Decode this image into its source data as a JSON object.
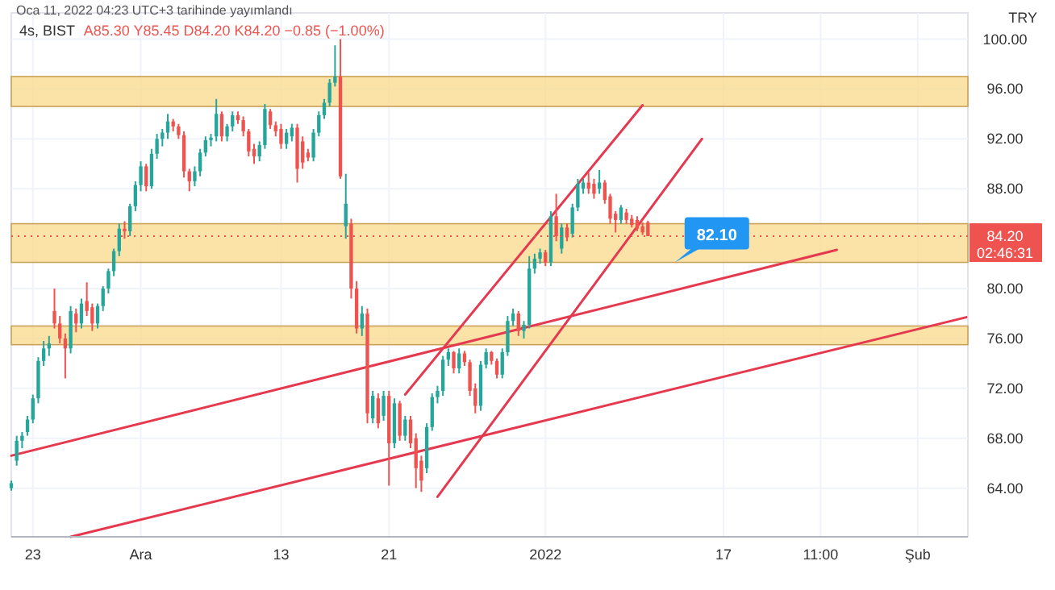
{
  "chart_data": {
    "type": "candlestick",
    "title": "4s, BIST",
    "subtitle": "A85.30 Y85.45 D84.20 K84.20 −0.85 (−1.00%)",
    "annotations": [
      "Oca 11, 2022 04:23 UTC+3 tarihinde yayımlandı",
      "TRY",
      "02:46:31",
      {
        "text": "82.10",
        "y": 82.1
      }
    ],
    "categories": [
      null,
      null,
      null,
      null,
      "23",
      null,
      null,
      null,
      null,
      null,
      null,
      null,
      null,
      null,
      null,
      null,
      null,
      null,
      null,
      null,
      null,
      null,
      null,
      null,
      "Ara",
      null,
      null,
      null,
      null,
      null,
      null,
      null,
      null,
      null,
      null,
      null,
      null,
      null,
      null,
      null,
      null,
      null,
      null,
      null,
      null,
      null,
      null,
      null,
      null,
      null,
      "13",
      null,
      null,
      null,
      null,
      null,
      null,
      null,
      null,
      null,
      null,
      null,
      null,
      null,
      null,
      null,
      null,
      null,
      null,
      null,
      "21",
      null,
      null,
      null,
      null,
      null,
      null,
      null,
      null,
      null,
      null,
      null,
      null,
      null,
      null,
      null,
      null,
      null,
      null,
      null,
      null,
      null,
      null,
      null,
      null,
      null,
      null,
      null,
      null,
      "2022",
      null,
      null,
      null,
      null,
      null,
      null,
      null,
      null,
      null,
      null,
      null,
      null,
      null,
      null,
      null,
      null,
      null,
      null,
      null,
      null,
      null,
      null,
      null,
      null,
      null,
      null,
      null,
      null,
      null,
      null,
      null,
      null,
      "17",
      null,
      null,
      null,
      null,
      null,
      null,
      null,
      null,
      null,
      null,
      null,
      null,
      null,
      null,
      null,
      null,
      null,
      "11:00",
      null,
      null,
      null,
      null,
      null,
      null,
      null,
      null,
      null,
      null,
      null,
      null,
      null,
      null,
      null,
      null,
      null,
      "Şub",
      null,
      null,
      null,
      null,
      null,
      null,
      null,
      null,
      null
    ],
    "ohlc": [
      [
        64.0,
        64.6,
        63.8,
        64.4
      ],
      [
        66.2,
        68.2,
        65.8,
        67.8
      ],
      [
        67.8,
        68.5,
        67.2,
        68.2
      ],
      [
        68.5,
        69.8,
        68.2,
        69.5
      ],
      [
        69.5,
        71.5,
        69.2,
        71.2
      ],
      [
        71.2,
        74.5,
        70.8,
        74.2
      ],
      [
        74.2,
        75.8,
        73.8,
        75.2
      ],
      [
        75.2,
        76.2,
        74.6,
        75.6
      ],
      [
        78.2,
        80.0,
        76.8,
        77.2
      ],
      [
        77.2,
        77.8,
        75.6,
        76.0
      ],
      [
        76.0,
        76.4,
        72.8,
        75.2
      ],
      [
        75.2,
        78.6,
        74.8,
        78.2
      ],
      [
        78.0,
        78.4,
        76.5,
        77.2
      ],
      [
        77.2,
        79.2,
        76.8,
        78.8
      ],
      [
        79.0,
        80.5,
        77.8,
        78.2
      ],
      [
        78.5,
        78.8,
        76.6,
        77.2
      ],
      [
        77.2,
        78.8,
        76.8,
        78.6
      ],
      [
        78.6,
        80.2,
        78.2,
        80.0
      ],
      [
        80.0,
        81.6,
        79.6,
        81.4
      ],
      [
        81.4,
        83.2,
        81.0,
        83.0
      ],
      [
        83.0,
        85.2,
        82.6,
        84.8
      ],
      [
        84.8,
        85.4,
        84.0,
        84.6
      ],
      [
        84.6,
        86.8,
        84.2,
        86.6
      ],
      [
        86.6,
        88.6,
        86.2,
        88.3
      ],
      [
        88.3,
        90.2,
        87.8,
        89.8
      ],
      [
        89.8,
        90.0,
        87.8,
        88.2
      ],
      [
        88.2,
        91.2,
        88.0,
        90.8
      ],
      [
        90.8,
        92.4,
        90.4,
        92.0
      ],
      [
        92.0,
        92.8,
        91.4,
        92.5
      ],
      [
        92.5,
        94.0,
        92.0,
        93.4
      ],
      [
        93.4,
        93.6,
        92.6,
        93.0
      ],
      [
        93.0,
        93.2,
        92.0,
        92.3
      ],
      [
        92.3,
        92.6,
        88.9,
        89.4
      ],
      [
        89.4,
        89.6,
        87.8,
        88.6
      ],
      [
        88.6,
        89.8,
        88.2,
        89.4
      ],
      [
        89.4,
        91.2,
        89.0,
        90.9
      ],
      [
        90.9,
        92.2,
        90.6,
        91.9
      ],
      [
        91.9,
        92.4,
        91.4,
        92.1
      ],
      [
        92.2,
        95.2,
        91.8,
        94.0
      ],
      [
        94.0,
        94.2,
        91.8,
        92.2
      ],
      [
        92.2,
        93.2,
        91.8,
        93.0
      ],
      [
        93.0,
        94.2,
        92.6,
        93.9
      ],
      [
        93.9,
        94.2,
        93.2,
        93.5
      ],
      [
        93.5,
        93.8,
        92.2,
        92.6
      ],
      [
        92.6,
        92.8,
        90.6,
        91.0
      ],
      [
        91.2,
        91.6,
        90.0,
        90.6
      ],
      [
        90.6,
        91.8,
        90.2,
        91.5
      ],
      [
        91.5,
        94.8,
        91.2,
        94.4
      ],
      [
        94.2,
        94.4,
        92.8,
        93.1
      ],
      [
        93.1,
        93.4,
        92.2,
        92.6
      ],
      [
        92.8,
        93.2,
        91.2,
        91.6
      ],
      [
        91.6,
        92.8,
        91.2,
        92.5
      ],
      [
        92.2,
        93.2,
        91.8,
        92.9
      ],
      [
        92.9,
        93.2,
        88.5,
        89.6
      ],
      [
        91.8,
        92.2,
        89.6,
        90.1
      ],
      [
        90.9,
        91.2,
        90.2,
        90.5
      ],
      [
        90.5,
        92.8,
        90.2,
        92.5
      ],
      [
        92.5,
        94.2,
        92.2,
        93.9
      ],
      [
        93.9,
        95.2,
        93.6,
        94.9
      ],
      [
        94.9,
        96.8,
        94.6,
        96.5
      ],
      [
        96.5,
        99.5,
        96.2,
        97.0
      ],
      [
        97.0,
        100.0,
        88.8,
        89.0
      ],
      [
        85.0,
        89.2,
        84.0,
        86.8
      ],
      [
        85.2,
        85.6,
        79.2,
        80.0
      ],
      [
        80.0,
        80.6,
        76.4,
        76.8
      ],
      [
        76.8,
        78.6,
        76.2,
        78.0
      ],
      [
        78.0,
        78.4,
        69.2,
        70.0
      ],
      [
        69.6,
        71.8,
        69.2,
        71.4
      ],
      [
        71.2,
        71.6,
        68.8,
        69.2
      ],
      [
        69.8,
        71.8,
        69.4,
        71.4
      ],
      [
        71.4,
        71.8,
        64.2,
        67.6
      ],
      [
        67.6,
        71.2,
        67.2,
        70.8
      ],
      [
        70.8,
        71.0,
        67.8,
        68.2
      ],
      [
        68.2,
        69.8,
        67.8,
        69.5
      ],
      [
        69.5,
        69.8,
        67.2,
        67.6
      ],
      [
        68.0,
        68.4,
        64.0,
        65.6
      ],
      [
        66.2,
        66.6,
        63.7,
        64.6
      ],
      [
        65.6,
        69.2,
        65.2,
        68.9
      ],
      [
        68.9,
        71.6,
        68.6,
        71.3
      ],
      [
        71.3,
        72.2,
        70.8,
        71.8
      ],
      [
        71.8,
        74.6,
        71.4,
        74.3
      ],
      [
        74.3,
        75.2,
        73.8,
        74.9
      ],
      [
        74.9,
        75.0,
        73.2,
        73.6
      ],
      [
        73.6,
        75.2,
        73.2,
        74.8
      ],
      [
        74.8,
        75.0,
        73.8,
        74.1
      ],
      [
        74.1,
        74.3,
        71.4,
        71.8
      ],
      [
        72.0,
        72.4,
        70.0,
        70.6
      ],
      [
        70.6,
        74.2,
        70.2,
        73.9
      ],
      [
        73.9,
        75.2,
        73.6,
        74.9
      ],
      [
        74.9,
        75.0,
        73.9,
        74.2
      ],
      [
        74.2,
        74.4,
        72.8,
        73.1
      ],
      [
        73.1,
        75.2,
        72.8,
        74.9
      ],
      [
        74.9,
        77.8,
        74.6,
        77.4
      ],
      [
        77.4,
        78.4,
        77.0,
        78.0
      ],
      [
        78.0,
        78.2,
        76.2,
        76.6
      ],
      [
        76.6,
        77.4,
        76.0,
        77.1
      ],
      [
        77.1,
        82.6,
        76.8,
        81.6
      ],
      [
        81.6,
        82.8,
        81.2,
        82.4
      ],
      [
        82.4,
        83.2,
        82.0,
        82.9
      ],
      [
        82.9,
        83.1,
        81.8,
        82.1
      ],
      [
        82.1,
        86.2,
        81.8,
        85.8
      ],
      [
        85.8,
        87.6,
        83.8,
        84.2
      ],
      [
        83.2,
        85.2,
        82.8,
        84.9
      ],
      [
        84.9,
        85.2,
        83.8,
        84.1
      ],
      [
        84.4,
        86.8,
        84.1,
        86.5
      ],
      [
        86.5,
        88.8,
        86.2,
        88.4
      ],
      [
        88.0,
        88.8,
        87.6,
        88.5
      ],
      [
        88.5,
        89.3,
        87.6,
        88.0
      ],
      [
        88.4,
        88.8,
        87.2,
        87.6
      ],
      [
        88.0,
        89.5,
        87.6,
        88.5
      ],
      [
        88.5,
        88.7,
        86.8,
        87.1
      ],
      [
        87.4,
        87.6,
        85.2,
        85.6
      ],
      [
        86.0,
        86.2,
        84.5,
        85.5
      ],
      [
        85.5,
        86.7,
        85.2,
        86.5
      ],
      [
        86.1,
        86.4,
        85.2,
        85.5
      ],
      [
        85.6,
        85.9,
        84.9,
        85.1
      ],
      [
        85.5,
        85.8,
        84.6,
        84.8
      ],
      [
        85.0,
        85.3,
        84.3,
        84.5
      ],
      [
        85.3,
        85.45,
        84.2,
        84.2
      ],
      null,
      null,
      null,
      null,
      null,
      null,
      null,
      null,
      null,
      null,
      null,
      null,
      null,
      null,
      null,
      null,
      null,
      null,
      null,
      null,
      null,
      null,
      null,
      null,
      null,
      null,
      null,
      null,
      null,
      null,
      null,
      null,
      null,
      null,
      null,
      null,
      null,
      null,
      null,
      null,
      null,
      null,
      null,
      null,
      null,
      null,
      null,
      null,
      null,
      null,
      null,
      null,
      null,
      null,
      null,
      null,
      null,
      null,
      null
    ],
    "series": [
      {
        "type": "line",
        "color": "#e53950",
        "values": [
          66.6,
          null,
          null,
          null,
          null,
          null,
          null,
          null,
          null,
          null,
          null,
          null,
          null,
          null,
          null,
          null,
          null,
          null,
          null,
          null,
          null,
          null,
          null,
          null,
          null,
          null,
          null,
          null,
          null,
          null,
          null,
          null,
          null,
          null,
          null,
          null,
          null,
          null,
          null,
          null,
          null,
          null,
          null,
          null,
          null,
          null,
          null,
          null,
          null,
          null,
          null,
          null,
          null,
          null,
          null,
          null,
          null,
          null,
          null,
          null,
          null,
          null,
          null,
          null,
          null,
          null,
          null,
          null,
          null,
          null,
          null,
          null,
          null,
          null,
          null,
          null,
          null,
          null,
          null,
          null,
          null,
          null,
          null,
          null,
          null,
          null,
          null,
          null,
          null,
          null,
          null,
          null,
          null,
          null,
          null,
          null,
          null,
          null,
          null,
          null,
          null,
          null,
          null,
          null,
          null,
          null,
          null,
          null,
          null,
          null,
          null,
          null,
          null,
          null,
          null,
          null,
          null,
          null,
          null,
          null,
          null,
          null,
          null,
          null,
          null,
          null,
          null,
          null,
          null,
          null,
          null,
          null,
          null,
          null,
          null,
          null,
          null,
          null,
          null,
          null,
          null,
          null,
          null,
          null,
          null,
          null,
          null,
          null,
          null,
          null,
          null,
          null,
          null,
          83.1,
          null,
          null,
          null,
          null,
          null,
          null,
          null,
          null,
          null,
          null,
          null,
          null,
          null,
          null,
          null,
          null,
          null,
          null,
          null,
          null,
          null,
          null,
          null,
          null
        ]
      },
      {
        "type": "line",
        "color": "#e53950",
        "values": [
          null,
          null,
          null,
          null,
          null,
          null,
          null,
          null,
          null,
          null,
          null,
          60.1,
          null,
          null,
          null,
          null,
          null,
          null,
          null,
          null,
          null,
          null,
          null,
          null,
          null,
          null,
          null,
          null,
          null,
          null,
          null,
          null,
          null,
          null,
          null,
          null,
          null,
          null,
          null,
          null,
          null,
          null,
          null,
          null,
          null,
          null,
          null,
          null,
          null,
          null,
          null,
          null,
          null,
          null,
          null,
          null,
          null,
          null,
          null,
          null,
          null,
          null,
          null,
          null,
          null,
          null,
          null,
          null,
          null,
          null,
          null,
          null,
          null,
          null,
          null,
          null,
          null,
          null,
          null,
          null,
          null,
          null,
          null,
          null,
          null,
          null,
          null,
          null,
          null,
          null,
          null,
          null,
          null,
          null,
          null,
          null,
          null,
          null,
          null,
          null,
          null,
          null,
          null,
          null,
          null,
          null,
          null,
          null,
          null,
          null,
          null,
          null,
          null,
          null,
          null,
          null,
          null,
          null,
          null,
          null,
          null,
          null,
          null,
          null,
          null,
          null,
          null,
          null,
          null,
          null,
          null,
          null,
          null,
          null,
          null,
          null,
          null,
          null,
          null,
          null,
          null,
          null,
          null,
          null,
          null,
          null,
          null,
          null,
          null,
          null,
          null,
          null,
          null,
          null,
          null,
          null,
          null,
          null,
          null,
          null,
          null,
          null,
          null,
          null,
          null,
          null,
          null,
          null,
          null,
          null,
          null,
          null,
          null,
          null,
          null,
          null,
          null,
          77.7
        ]
      },
      {
        "type": "line",
        "color": "#e53950",
        "values": [
          null,
          null,
          null,
          null,
          null,
          null,
          null,
          null,
          null,
          null,
          null,
          null,
          null,
          null,
          null,
          null,
          null,
          null,
          null,
          null,
          null,
          null,
          null,
          null,
          null,
          null,
          null,
          null,
          null,
          null,
          null,
          null,
          null,
          null,
          null,
          null,
          null,
          null,
          null,
          null,
          null,
          null,
          null,
          null,
          null,
          null,
          null,
          null,
          null,
          null,
          null,
          null,
          null,
          null,
          null,
          null,
          null,
          null,
          null,
          null,
          null,
          null,
          null,
          null,
          null,
          null,
          null,
          null,
          null,
          null,
          null,
          null,
          null,
          71.5,
          null,
          null,
          null,
          null,
          null,
          null,
          null,
          null,
          null,
          null,
          null,
          null,
          null,
          null,
          null,
          null,
          null,
          null,
          null,
          null,
          null,
          null,
          null,
          null,
          null,
          null,
          null,
          null,
          null,
          null,
          null,
          null,
          null,
          null,
          null,
          null,
          null,
          null,
          null,
          null,
          null,
          null,
          null,
          94.7,
          null,
          null,
          null,
          null,
          null,
          null,
          null,
          null,
          null,
          null,
          null,
          null,
          null,
          null,
          null,
          null,
          null,
          null,
          null,
          null,
          null,
          null,
          null,
          null,
          null,
          null,
          null,
          null,
          null,
          null,
          null,
          null,
          null,
          null,
          null,
          null,
          null,
          null,
          null,
          null,
          null,
          null,
          null,
          null,
          null,
          null,
          null,
          null,
          null,
          null,
          null,
          null,
          null,
          null,
          null,
          null,
          null,
          null,
          null,
          null
        ]
      },
      {
        "type": "line",
        "color": "#e53950",
        "values": [
          null,
          null,
          null,
          null,
          null,
          null,
          null,
          null,
          null,
          null,
          null,
          null,
          null,
          null,
          null,
          null,
          null,
          null,
          null,
          null,
          null,
          null,
          null,
          null,
          null,
          null,
          null,
          null,
          null,
          null,
          null,
          null,
          null,
          null,
          null,
          null,
          null,
          null,
          null,
          null,
          null,
          null,
          null,
          null,
          null,
          null,
          null,
          null,
          null,
          null,
          null,
          null,
          null,
          null,
          null,
          null,
          null,
          null,
          null,
          null,
          null,
          null,
          null,
          null,
          null,
          null,
          null,
          null,
          null,
          null,
          null,
          null,
          null,
          null,
          null,
          null,
          null,
          null,
          null,
          63.3,
          null,
          null,
          null,
          null,
          null,
          null,
          null,
          null,
          null,
          null,
          null,
          null,
          null,
          null,
          null,
          null,
          null,
          null,
          null,
          null,
          null,
          null,
          null,
          null,
          null,
          null,
          null,
          null,
          null,
          null,
          null,
          null,
          null,
          null,
          null,
          null,
          null,
          null,
          null,
          null,
          null,
          null,
          null,
          null,
          null,
          null,
          null,
          null,
          92.0,
          null,
          null,
          null,
          null,
          null,
          null,
          null,
          null,
          null,
          null,
          null,
          null,
          null,
          null,
          null,
          null,
          null,
          null,
          null,
          null,
          null,
          null,
          null,
          null,
          null,
          null,
          null,
          null,
          null,
          null,
          null,
          null,
          null,
          null,
          null,
          null,
          null,
          null,
          null,
          null,
          null,
          null,
          null,
          null,
          null,
          null,
          null,
          null,
          null
        ]
      }
    ],
    "bands": [
      {
        "axis": "y",
        "from": 94.6,
        "to": 97.0,
        "color": "#f9d98b"
      },
      {
        "axis": "y",
        "from": 82.1,
        "to": 85.2,
        "color": "#f9d98b"
      },
      {
        "axis": "y",
        "from": 75.5,
        "to": 77.0,
        "color": "#f9d98b"
      }
    ],
    "ref_lines": [
      {
        "axis": "y",
        "value": 84.2,
        "label": "84.20",
        "color": "#ef5350",
        "line_style": "dotted"
      }
    ],
    "ylim": [
      60.1,
      102.1
    ],
    "yticks": [
      {
        "value": 64,
        "label": "64.00"
      },
      {
        "value": 68,
        "label": "68.00"
      },
      {
        "value": 72,
        "label": "72.00"
      },
      {
        "value": 76,
        "label": "76.00"
      },
      {
        "value": 80,
        "label": "80.00"
      },
      {
        "value": 88,
        "label": "88.00"
      },
      {
        "value": 92,
        "label": "92.00"
      },
      {
        "value": 96,
        "label": "96.00"
      },
      {
        "value": 100,
        "label": "100.00"
      }
    ],
    "grid": true
  }
}
